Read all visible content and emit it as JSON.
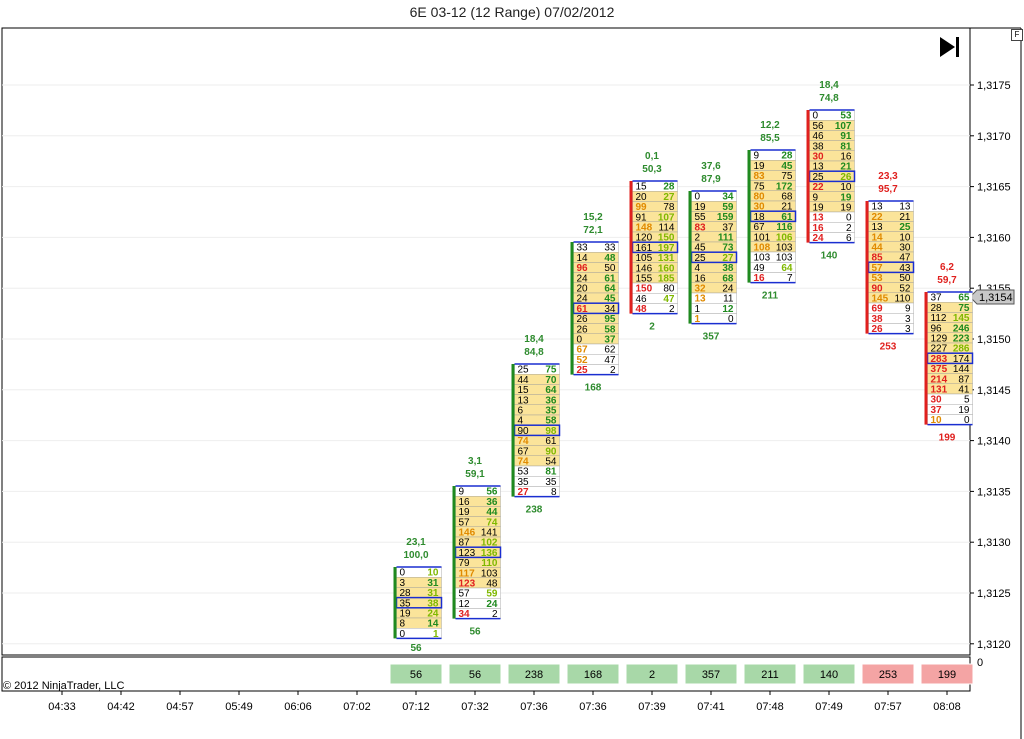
{
  "chart_data": {
    "type": "footprint",
    "title": "6E 03-12 (12 Range)  07/02/2012",
    "copyright": "© 2012 NinjaTrader, LLC",
    "f_label": "F",
    "price_axis": {
      "ticks": [
        "1,3175",
        "1,3170",
        "1,3165",
        "1,3160",
        "1,3155",
        "1,3150",
        "1,3145",
        "1,3140",
        "1,3135",
        "1,3130",
        "1,3125",
        "1,3120"
      ],
      "current_price": "1,3154",
      "range": [
        1.3119,
        1.3178
      ]
    },
    "volume_axis_label": "0",
    "time_labels": [
      "04:33",
      "04:42",
      "04:57",
      "05:49",
      "06:06",
      "07:02",
      "07:12",
      "07:32",
      "07:36",
      "07:36",
      "07:39",
      "07:41",
      "07:48",
      "07:49",
      "07:57",
      "08:08"
    ],
    "bars": [
      {
        "time": "07:12",
        "top1": "23,1",
        "top2": "100,0",
        "top_color": "#2e8b2e",
        "delta": "56",
        "delta_color": "#2e8b2e",
        "side": "up",
        "rows": [
          [
            "0",
            "10"
          ],
          [
            "3",
            "31"
          ],
          [
            "28",
            "31"
          ],
          [
            "35",
            "38"
          ],
          [
            "19",
            "24"
          ],
          [
            "8",
            "14"
          ],
          [
            "0",
            "1"
          ]
        ]
      },
      {
        "time": "07:32",
        "top1": "3,1",
        "top2": "59,1",
        "top_color": "#2e8b2e",
        "delta": "56",
        "delta_color": "#2e8b2e",
        "side": "up",
        "rows": [
          [
            "9",
            "56"
          ],
          [
            "16",
            "36"
          ],
          [
            "19",
            "44"
          ],
          [
            "57",
            "74"
          ],
          [
            "146",
            "141"
          ],
          [
            "87",
            "102"
          ],
          [
            "123",
            "136"
          ],
          [
            "79",
            "110"
          ],
          [
            "117",
            "103"
          ],
          [
            "123",
            "48"
          ],
          [
            "57",
            "59"
          ],
          [
            "12",
            "24"
          ],
          [
            "34",
            "2"
          ]
        ]
      },
      {
        "time": "07:36",
        "top1": "18,4",
        "top2": "84,8",
        "top_color": "#2e8b2e",
        "delta": "238",
        "delta_color": "#2e8b2e",
        "side": "up",
        "rows": [
          [
            "25",
            "75"
          ],
          [
            "44",
            "70"
          ],
          [
            "15",
            "64"
          ],
          [
            "13",
            "36"
          ],
          [
            "6",
            "35"
          ],
          [
            "4",
            "58"
          ],
          [
            "90",
            "98"
          ],
          [
            "74",
            "61"
          ],
          [
            "67",
            "90"
          ],
          [
            "74",
            "54"
          ],
          [
            "53",
            "81"
          ],
          [
            "35",
            "35"
          ],
          [
            "27",
            "8"
          ]
        ]
      },
      {
        "time": "07:36",
        "top1": "15,2",
        "top2": "72,1",
        "top_color": "#2e8b2e",
        "delta": "168",
        "delta_color": "#2e8b2e",
        "side": "up",
        "rows": [
          [
            "33",
            "33"
          ],
          [
            "14",
            "48"
          ],
          [
            "96",
            "50"
          ],
          [
            "24",
            "61"
          ],
          [
            "20",
            "64"
          ],
          [
            "24",
            "45"
          ],
          [
            "61",
            "34"
          ],
          [
            "26",
            "95"
          ],
          [
            "26",
            "58"
          ],
          [
            "0",
            "37"
          ],
          [
            "67",
            "62"
          ],
          [
            "52",
            "47"
          ],
          [
            "25",
            "2"
          ]
        ]
      },
      {
        "time": "07:39",
        "top1": "0,1",
        "top2": "50,3",
        "top_color": "#2e8b2e",
        "delta": "2",
        "delta_color": "#2e8b2e",
        "side": "down",
        "rows": [
          [
            "15",
            "28"
          ],
          [
            "20",
            "27"
          ],
          [
            "99",
            "78"
          ],
          [
            "91",
            "107"
          ],
          [
            "148",
            "114"
          ],
          [
            "120",
            "150"
          ],
          [
            "161",
            "197"
          ],
          [
            "105",
            "131"
          ],
          [
            "146",
            "160"
          ],
          [
            "155",
            "185"
          ],
          [
            "150",
            "80"
          ],
          [
            "46",
            "47"
          ],
          [
            "48",
            "2"
          ]
        ]
      },
      {
        "time": "07:41",
        "top1": "37,6",
        "top2": "87,9",
        "top_color": "#2e8b2e",
        "delta": "357",
        "delta_color": "#2e8b2e",
        "side": "up",
        "rows": [
          [
            "0",
            "34"
          ],
          [
            "19",
            "59"
          ],
          [
            "55",
            "159"
          ],
          [
            "83",
            "37"
          ],
          [
            "2",
            "111"
          ],
          [
            "45",
            "73"
          ],
          [
            "25",
            "27"
          ],
          [
            "4",
            "38"
          ],
          [
            "16",
            "68"
          ],
          [
            "32",
            "24"
          ],
          [
            "13",
            "11"
          ],
          [
            "1",
            "12"
          ],
          [
            "1",
            "0"
          ]
        ]
      },
      {
        "time": "07:48",
        "top1": "12,2",
        "top2": "85,5",
        "top_color": "#2e8b2e",
        "delta": "211",
        "delta_color": "#2e8b2e",
        "side": "up",
        "rows": [
          [
            "9",
            "28"
          ],
          [
            "19",
            "45"
          ],
          [
            "83",
            "75"
          ],
          [
            "75",
            "172"
          ],
          [
            "80",
            "68"
          ],
          [
            "30",
            "21"
          ],
          [
            "18",
            "61"
          ],
          [
            "67",
            "116"
          ],
          [
            "101",
            "106"
          ],
          [
            "108",
            "103"
          ],
          [
            "103",
            "103"
          ],
          [
            "49",
            "64"
          ],
          [
            "16",
            "7"
          ]
        ]
      },
      {
        "time": "07:49",
        "top1": "18,4",
        "top2": "74,8",
        "top_color": "#2e8b2e",
        "delta": "140",
        "delta_color": "#2e8b2e",
        "side": "down",
        "rows": [
          [
            "0",
            "53"
          ],
          [
            "56",
            "107"
          ],
          [
            "46",
            "91"
          ],
          [
            "38",
            "81"
          ],
          [
            "30",
            "16"
          ],
          [
            "13",
            "21"
          ],
          [
            "25",
            "26"
          ],
          [
            "22",
            "10"
          ],
          [
            "9",
            "19"
          ],
          [
            "19",
            "19"
          ],
          [
            "13",
            "0"
          ],
          [
            "16",
            "2"
          ],
          [
            "24",
            "6"
          ]
        ]
      },
      {
        "time": "07:57",
        "top1": "23,3",
        "top2": "95,7",
        "top_color": "#e0201e",
        "delta": "253",
        "delta_color": "#e0201e",
        "side": "down",
        "rows": [
          [
            "13",
            "13"
          ],
          [
            "22",
            "21"
          ],
          [
            "13",
            "25"
          ],
          [
            "14",
            "10"
          ],
          [
            "44",
            "30"
          ],
          [
            "85",
            "47"
          ],
          [
            "57",
            "43"
          ],
          [
            "53",
            "50"
          ],
          [
            "90",
            "52"
          ],
          [
            "145",
            "110"
          ],
          [
            "69",
            "9"
          ],
          [
            "38",
            "3"
          ],
          [
            "26",
            "3"
          ]
        ]
      },
      {
        "time": "08:08",
        "top1": "6,2",
        "top2": "59,7",
        "top_color": "#e0201e",
        "delta": "199",
        "delta_color": "#e0201e",
        "side": "down",
        "rows": [
          [
            "37",
            "65"
          ],
          [
            "28",
            "75"
          ],
          [
            "112",
            "145"
          ],
          [
            "96",
            "246"
          ],
          [
            "129",
            "223"
          ],
          [
            "227",
            "286"
          ],
          [
            "283",
            "174"
          ],
          [
            "375",
            "144"
          ],
          [
            "214",
            "87"
          ],
          [
            "131",
            "41"
          ],
          [
            "30",
            "5"
          ],
          [
            "37",
            "19"
          ],
          [
            "10",
            "0"
          ]
        ]
      }
    ]
  }
}
